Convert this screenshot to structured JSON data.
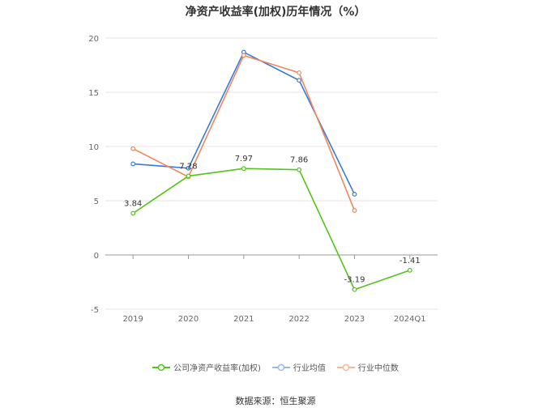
{
  "chart_data": {
    "type": "line",
    "title": "净资产收益率(加权)历年情况（%）",
    "categories": [
      "2019",
      "2020",
      "2021",
      "2022",
      "2023",
      "2024Q1"
    ],
    "ylim": [
      -5,
      20
    ],
    "yticks": [
      -5,
      0,
      5,
      10,
      15,
      20
    ],
    "grid": true,
    "legend_position": "bottom",
    "series": [
      {
        "name": "公司净资产收益率(加权)",
        "color": "#52c41a",
        "values": [
          3.84,
          7.28,
          7.97,
          7.86,
          -3.19,
          -1.41
        ],
        "labels": [
          "3.84",
          "7.28",
          "7.97",
          "7.86",
          "-3.19",
          "-1.41"
        ]
      },
      {
        "name": "行业均值",
        "color": "#3a78d6",
        "values": [
          8.4,
          8.0,
          18.7,
          16.1,
          5.6,
          null
        ]
      },
      {
        "name": "行业中位数",
        "color": "#f0875a",
        "values": [
          9.8,
          7.2,
          18.4,
          16.8,
          4.1,
          null
        ]
      }
    ]
  },
  "source": "数据来源：恒生聚源"
}
